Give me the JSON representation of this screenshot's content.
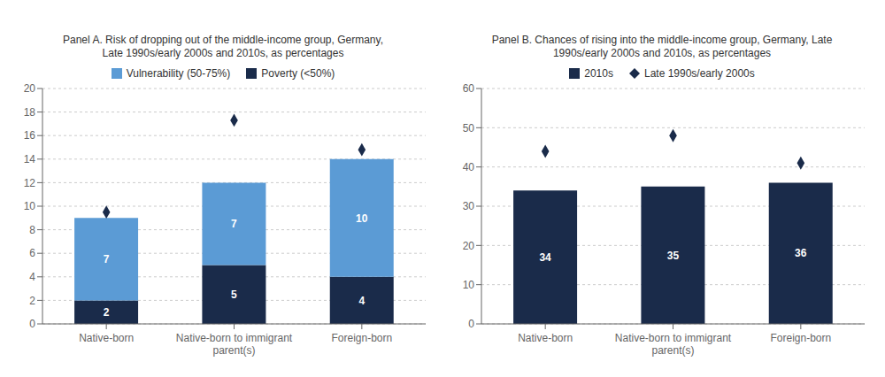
{
  "chart_data": [
    {
      "type": "bar",
      "title": "Panel A. Risk of dropping out of the middle-income group, Germany,\nLate 1990s/early 2000s and 2010s, as percentages",
      "categories": [
        "Native-born",
        "Native-born to immigrant\nparent(s)",
        "Foreign-born"
      ],
      "stacked": true,
      "data_labels": true,
      "grid": true,
      "ylim": [
        0,
        20
      ],
      "yticks": [
        0,
        2,
        4,
        6,
        8,
        10,
        12,
        14,
        16,
        18,
        20
      ],
      "series": [
        {
          "name": "Poverty (<50%)",
          "color": "#1a2b4a",
          "values": [
            2,
            5,
            4
          ]
        },
        {
          "name": "Vulnerability (50-75%)",
          "color": "#5b9bd5",
          "values": [
            7,
            7,
            10
          ]
        },
        {
          "type": "scatter",
          "marker": "diamond",
          "color": "#1a2b4a",
          "values": [
            9.5,
            17.3,
            14.8
          ]
        }
      ]
    },
    {
      "type": "bar",
      "title": "Panel B. Chances of rising into the middle-income group, Germany, Late\n1990s/early 2000s and 2010s, as percentages",
      "categories": [
        "Native-born",
        "Native-born to immigrant\nparent(s)",
        "Foreign-born"
      ],
      "data_labels": true,
      "grid": true,
      "ylim": [
        0,
        60
      ],
      "yticks": [
        0,
        10,
        20,
        30,
        40,
        50,
        60
      ],
      "series": [
        {
          "name": "2010s",
          "color": "#1a2b4a",
          "values": [
            34,
            35,
            36
          ]
        },
        {
          "type": "scatter",
          "marker": "diamond",
          "name": "Late 1990s/early 2000s",
          "color": "#1a2b4a",
          "values": [
            44,
            48,
            41
          ]
        }
      ]
    }
  ]
}
